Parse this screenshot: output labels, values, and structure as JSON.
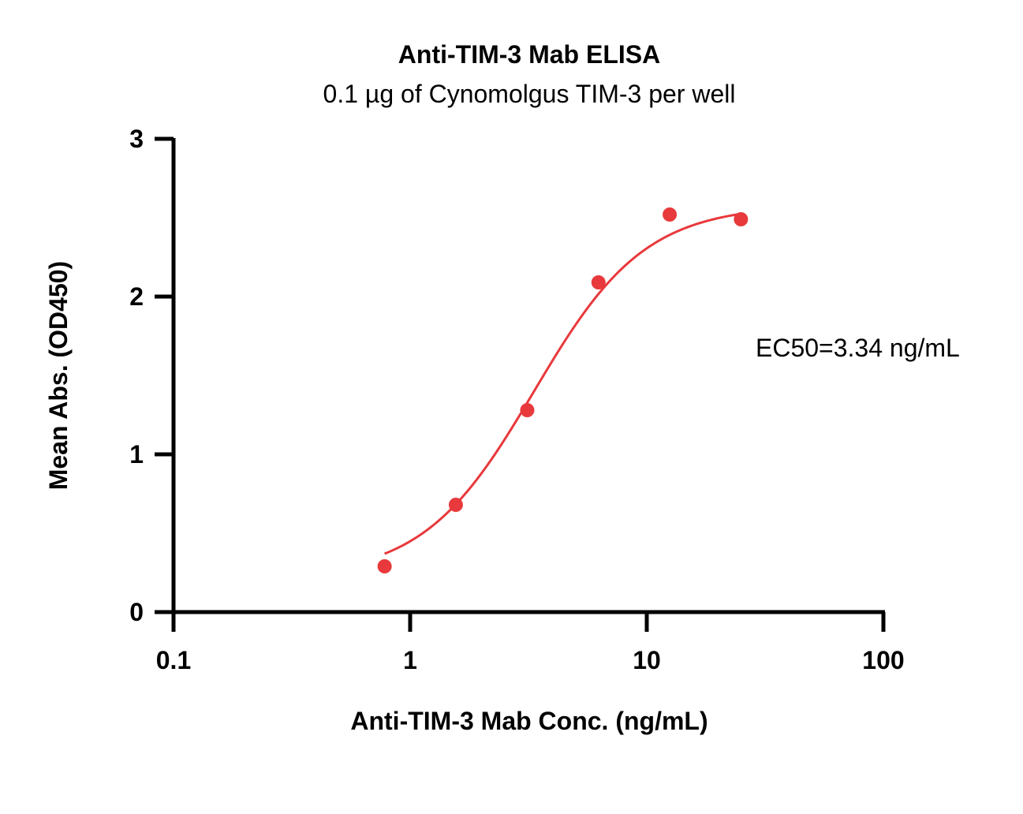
{
  "chart_data": {
    "type": "scatter",
    "title": "Anti-TIM-3 Mab ELISA",
    "subtitle": "0.1 µg of Cynomolgus TIM-3 per well",
    "xlabel": "Anti-TIM-3 Mab Conc. (ng/mL)",
    "ylabel": "Mean Abs. (OD450)",
    "x_scale": "log",
    "xlim": [
      0.1,
      100
    ],
    "ylim": [
      0,
      3
    ],
    "x_ticks": [
      0.1,
      1,
      10,
      100
    ],
    "x_tick_labels": [
      "0.1",
      "1",
      "10",
      "100"
    ],
    "y_ticks": [
      0,
      1,
      2,
      3
    ],
    "y_tick_labels": [
      "0",
      "1",
      "2",
      "3"
    ],
    "grid": false,
    "annotation": "EC50=3.34 ng/mL",
    "color": "#e8393c",
    "series": [
      {
        "x": [
          0.78,
          1.56,
          3.125,
          6.25,
          12.5,
          25
        ],
        "y": [
          0.29,
          0.68,
          1.28,
          2.09,
          2.52,
          2.49
        ]
      }
    ],
    "fit": {
      "model": "4PL",
      "bottom": 0.22,
      "top": 2.58,
      "ec50": 3.34,
      "hill": 1.85,
      "x_range": [
        0.78,
        25
      ]
    }
  }
}
